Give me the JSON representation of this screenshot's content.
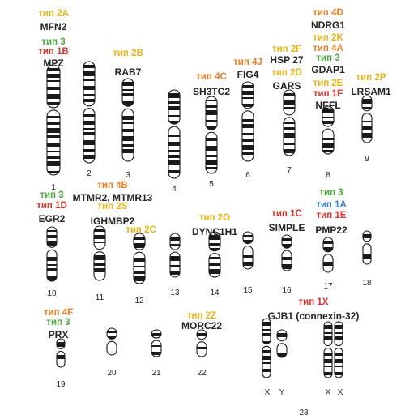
{
  "colors": {
    "yellow": "#e8b51a",
    "green": "#4aa83c",
    "red": "#d6332b",
    "orange": "#e8812a",
    "blue": "#3a80c4"
  },
  "chromosomes": [
    {
      "num": "1",
      "genes": [
        {
          "text": "тип 2A",
          "color": "#e8b51a"
        },
        {
          "text": "MFN2",
          "color": ""
        },
        {
          "text": "тип 3",
          "color": "#4aa83c"
        },
        {
          "text": "тип 1B",
          "color": "#d6332b"
        },
        {
          "text": "MPZ",
          "color": ""
        }
      ]
    },
    {
      "num": "2",
      "genes": []
    },
    {
      "num": "3",
      "genes": [
        {
          "text": "тип 2B",
          "color": "#e8b51a"
        },
        {
          "text": "RAB7",
          "color": ""
        }
      ]
    },
    {
      "num": "4",
      "genes": []
    },
    {
      "num": "5",
      "genes": [
        {
          "text": "тип 4C",
          "color": "#e8812a"
        },
        {
          "text": "SH3TC2",
          "color": ""
        }
      ]
    },
    {
      "num": "6",
      "genes": [
        {
          "text": "тип 4J",
          "color": "#e8812a"
        },
        {
          "text": "FIG4",
          "color": ""
        }
      ]
    },
    {
      "num": "7",
      "genes": [
        {
          "text": "тип 2F",
          "color": "#e8b51a"
        },
        {
          "text": "HSP 27",
          "color": ""
        },
        {
          "text": "тип 2D",
          "color": "#e8b51a"
        },
        {
          "text": "GARS",
          "color": ""
        }
      ]
    },
    {
      "num": "8",
      "genes": [
        {
          "text": "тип 4D",
          "color": "#e8812a"
        },
        {
          "text": "NDRG1",
          "color": ""
        },
        {
          "text": "тип 2K",
          "color": "#e8b51a"
        },
        {
          "text": "тип 4A",
          "color": "#e8812a"
        },
        {
          "text": "тип 3",
          "color": "#4aa83c"
        },
        {
          "text": "GDAP1",
          "color": ""
        },
        {
          "text": "тип 2E",
          "color": "#e8b51a"
        },
        {
          "text": "тип 1F",
          "color": "#d6332b"
        },
        {
          "text": "NEFL",
          "color": ""
        }
      ]
    },
    {
      "num": "9",
      "genes": [
        {
          "text": "тип 2P",
          "color": "#e8b51a"
        },
        {
          "text": "LRSAM1",
          "color": ""
        }
      ]
    },
    {
      "num": "10",
      "genes": [
        {
          "text": "тип 3",
          "color": "#4aa83c"
        },
        {
          "text": "тип 1D",
          "color": "#d6332b"
        },
        {
          "text": "EGR2",
          "color": ""
        }
      ]
    },
    {
      "num": "11",
      "genes": [
        {
          "text": "тип 4B",
          "color": "#e8812a"
        },
        {
          "text": "MTMR2, MTMR13",
          "color": ""
        },
        {
          "text": "тип 2S",
          "color": "#e8b51a"
        },
        {
          "text": "IGHMBP2",
          "color": ""
        }
      ]
    },
    {
      "num": "12",
      "genes": [
        {
          "text": "тип 2C",
          "color": "#e8b51a"
        }
      ]
    },
    {
      "num": "13",
      "genes": []
    },
    {
      "num": "14",
      "genes": [
        {
          "text": "тип 2O",
          "color": "#e8b51a"
        },
        {
          "text": "DYNC1H1",
          "color": ""
        }
      ]
    },
    {
      "num": "15",
      "genes": []
    },
    {
      "num": "16",
      "genes": [
        {
          "text": "тип 1C",
          "color": "#d6332b"
        },
        {
          "text": "SIMPLE",
          "color": ""
        }
      ]
    },
    {
      "num": "17",
      "genes": [
        {
          "text": "тип 3",
          "color": "#4aa83c"
        },
        {
          "text": "тип 1A",
          "color": "#3a80c4"
        },
        {
          "text": "тип 1E",
          "color": "#d6332b"
        },
        {
          "text": "PMP22",
          "color": ""
        }
      ]
    },
    {
      "num": "18",
      "genes": []
    },
    {
      "num": "19",
      "genes": [
        {
          "text": "тип 4F",
          "color": "#e8812a"
        },
        {
          "text": "тип 3",
          "color": "#4aa83c"
        },
        {
          "text": "PRX",
          "color": ""
        }
      ]
    },
    {
      "num": "20",
      "genes": []
    },
    {
      "num": "21",
      "genes": []
    },
    {
      "num": "22",
      "genes": [
        {
          "text": "тип 2Z",
          "color": "#e8b51a"
        },
        {
          "text": "MORC22",
          "color": ""
        }
      ]
    },
    {
      "num": "23",
      "genes": [
        {
          "text": "тип 1X",
          "color": "#d6332b"
        },
        {
          "text": "GJB1 (connexin-32)",
          "color": ""
        }
      ],
      "sex": [
        "X",
        "Y",
        "X",
        "X"
      ]
    }
  ]
}
